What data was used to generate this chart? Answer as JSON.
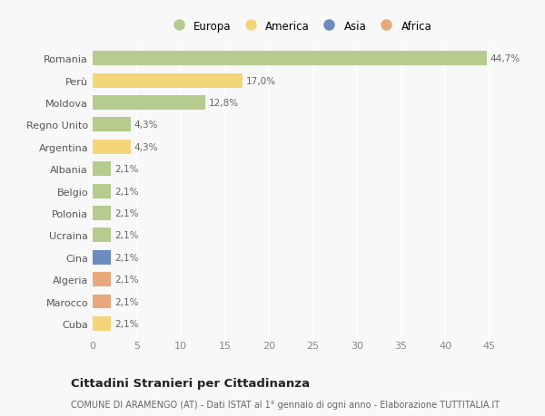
{
  "categories": [
    "Cuba",
    "Marocco",
    "Algeria",
    "Cina",
    "Ucraina",
    "Polonia",
    "Belgio",
    "Albania",
    "Argentina",
    "Regno Unito",
    "Moldova",
    "Perù",
    "Romania"
  ],
  "values": [
    2.1,
    2.1,
    2.1,
    2.1,
    2.1,
    2.1,
    2.1,
    2.1,
    4.3,
    4.3,
    12.8,
    17.0,
    44.7
  ],
  "labels": [
    "2,1%",
    "2,1%",
    "2,1%",
    "2,1%",
    "2,1%",
    "2,1%",
    "2,1%",
    "2,1%",
    "4,3%",
    "4,3%",
    "12,8%",
    "17,0%",
    "44,7%"
  ],
  "colors": [
    "#f5d57a",
    "#e8a87c",
    "#e8a87c",
    "#6b8cbf",
    "#b5cc8e",
    "#b5cc8e",
    "#b5cc8e",
    "#b5cc8e",
    "#f5d57a",
    "#b5cc8e",
    "#b5cc8e",
    "#f5d57a",
    "#b5cc8e"
  ],
  "legend_labels": [
    "Europa",
    "America",
    "Asia",
    "Africa"
  ],
  "legend_colors": [
    "#b5cc8e",
    "#f5d57a",
    "#6b8cbf",
    "#e8a87c"
  ],
  "title": "Cittadini Stranieri per Cittadinanza",
  "subtitle": "COMUNE DI ARAMENGO (AT) - Dati ISTAT al 1° gennaio di ogni anno - Elaborazione TUTTITALIA.IT",
  "xlim": [
    0,
    47
  ],
  "xticks": [
    0,
    5,
    10,
    15,
    20,
    25,
    30,
    35,
    40,
    45
  ],
  "background_color": "#f8f8f8",
  "grid_color": "#ffffff",
  "bar_height": 0.65
}
